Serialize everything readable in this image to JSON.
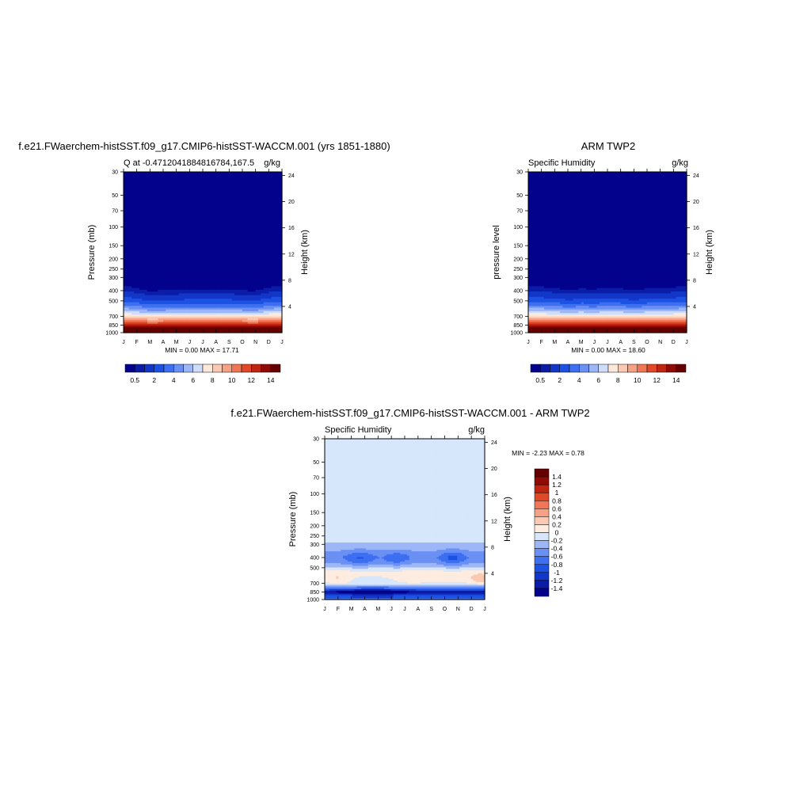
{
  "chart_data": [
    {
      "type": "heatmap",
      "title": "f.e21.FWaerchem-histSST.f09_g17.CMIP6-histSST-WACCM.001 (yrs 1851-1880)",
      "left_label": "Q at -0.4712041884816784,167.5",
      "right_label": "g/kg",
      "ylabel": "Pressure (mb)",
      "ylabel_right": "Height (km)",
      "x_ticklabels": [
        "J",
        "F",
        "M",
        "A",
        "M",
        "J",
        "J",
        "A",
        "S",
        "O",
        "N",
        "D",
        "J"
      ],
      "y_ticks": [
        30,
        50,
        70,
        100,
        150,
        200,
        250,
        300,
        400,
        500,
        700,
        850,
        1000
      ],
      "y_ticks_right": [
        24,
        20,
        16,
        12,
        8,
        4
      ],
      "min_max_text": "MIN =   0.00 MAX =  17.71",
      "min": 0.0,
      "max": 17.71,
      "colorbar_labels": [
        "0.5",
        "2",
        "4",
        "6",
        "8",
        "10",
        "12",
        "14"
      ],
      "moisture_top_hpa": [
        300,
        315,
        340,
        335,
        330,
        325,
        325,
        325,
        325,
        335,
        340,
        310,
        300
      ]
    },
    {
      "type": "heatmap",
      "title": "ARM TWP2",
      "left_label": "Specific Humidity",
      "right_label": "g/kg",
      "ylabel": "pressure level",
      "ylabel_right": "Height (km)",
      "x_ticklabels": [
        "J",
        "F",
        "M",
        "A",
        "M",
        "J",
        "J",
        "A",
        "S",
        "O",
        "N",
        "D",
        "J"
      ],
      "y_ticks": [
        30,
        50,
        70,
        100,
        150,
        200,
        250,
        300,
        400,
        500,
        700,
        850,
        1000
      ],
      "y_ticks_right": [
        24,
        20,
        16,
        12,
        8,
        4
      ],
      "min_max_text": "MIN =   0.00 MAX =  18.60",
      "min": 0.0,
      "max": 18.6,
      "colorbar_labels": [
        "0.5",
        "2",
        "4",
        "6",
        "8",
        "10",
        "12",
        "14"
      ],
      "moisture_top_hpa": [
        300,
        305,
        315,
        330,
        320,
        325,
        315,
        320,
        330,
        320,
        320,
        310,
        300
      ]
    },
    {
      "type": "heatmap",
      "title": "f.e21.FWaerchem-histSST.f09_g17.CMIP6-histSST-WACCM.001 - ARM TWP2",
      "left_label": "Specific Humidity",
      "right_label": "g/kg",
      "ylabel": "Pressure (mb)",
      "ylabel_right": "Height (km)",
      "x_ticklabels": [
        "J",
        "F",
        "M",
        "A",
        "M",
        "J",
        "J",
        "A",
        "S",
        "O",
        "N",
        "D",
        "J"
      ],
      "y_ticks": [
        30,
        50,
        70,
        100,
        150,
        200,
        250,
        300,
        400,
        500,
        700,
        850,
        1000
      ],
      "y_ticks_right": [
        24,
        20,
        16,
        12,
        8,
        4
      ],
      "min_max_text": "MIN =  -2.23 MAX =   0.78",
      "min": -2.23,
      "max": 0.78,
      "colorbar_labels": [
        "1.4",
        "1.2",
        "1",
        "0.8",
        "0.6",
        "0.4",
        "0.2",
        "0",
        "-0.2",
        "-0.4",
        "-0.6",
        "-0.8",
        "-1",
        "-1.2",
        "-1.4"
      ]
    }
  ],
  "colors": {
    "abs_scale": [
      "#02028c",
      "#0a1ca8",
      "#1237c8",
      "#1c52e4",
      "#3d6ff0",
      "#6b90f4",
      "#9cb6f7",
      "#cdddfa",
      "#fde8dc",
      "#fbc9b2",
      "#f7a184",
      "#f17656",
      "#e04828",
      "#c02512",
      "#8f0b05",
      "#650000"
    ],
    "diff_scale": [
      "#02028c",
      "#0a1ca8",
      "#1237c8",
      "#1c52e4",
      "#3d6ff0",
      "#6b90f4",
      "#9cb6f7",
      "#d6e6fb",
      "#fdecdf",
      "#fbc9b2",
      "#f7a184",
      "#f17656",
      "#e04828",
      "#c02512",
      "#8f0b05",
      "#650000"
    ]
  }
}
